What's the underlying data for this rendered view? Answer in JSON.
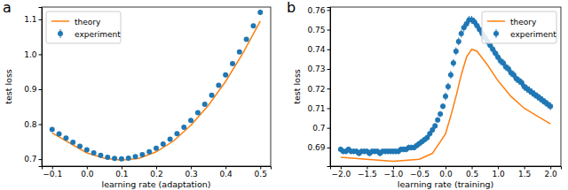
{
  "chart_data": [
    {
      "type": "line",
      "title": "a",
      "x_label": "learning rate (adaptation)",
      "y_label": "test loss",
      "xlim": [
        -0.13,
        0.53
      ],
      "ylim": [
        0.68,
        1.135
      ],
      "xticks": [
        {
          "value": -0.1,
          "label": "−0.1"
        },
        {
          "value": 0,
          "label": "0.0"
        },
        0.1,
        0.2,
        0.3,
        0.4,
        0.5
      ],
      "yticks": [
        0.7,
        0.8,
        0.9,
        {
          "value": 1,
          "label": "1.0"
        },
        1.1
      ],
      "legend": "upper left",
      "series": [
        {
          "name": "theory",
          "type": "line",
          "color": "#ff7f0e",
          "line_style": "solid",
          "x": [
            -0.1,
            0,
            0.05,
            0.1,
            0.15,
            0.2,
            0.25,
            0.3,
            0.35,
            0.4,
            0.45,
            0.5
          ],
          "values": [
            0.775,
            0.718,
            0.703,
            0.697,
            0.702,
            0.721,
            0.752,
            0.797,
            0.853,
            0.922,
            1.003,
            1.095
          ]
        },
        {
          "name": "experiment",
          "type": "scatter",
          "color": "#1f77b4",
          "marker": "circle",
          "x": [
            -0.1,
            -0.08,
            -0.06,
            -0.04,
            -0.02,
            0,
            0.02,
            0.04,
            0.06,
            0.08,
            0.1,
            0.12,
            0.14,
            0.16,
            0.18,
            0.2,
            0.22,
            0.24,
            0.26,
            0.28,
            0.3,
            0.32,
            0.34,
            0.36,
            0.38,
            0.4,
            0.42,
            0.44,
            0.46,
            0.48,
            0.5
          ],
          "values": [
            0.785,
            0.772,
            0.76,
            0.748,
            0.737,
            0.727,
            0.718,
            0.711,
            0.705,
            0.702,
            0.701,
            0.703,
            0.707,
            0.713,
            0.721,
            0.731,
            0.743,
            0.757,
            0.773,
            0.791,
            0.811,
            0.833,
            0.857,
            0.883,
            0.911,
            0.941,
            0.973,
            1.007,
            1.043,
            1.081,
            1.12
          ],
          "errors": [
            0.006,
            0.006,
            0.006,
            0.006,
            0.006,
            0.006,
            0.006,
            0.006,
            0.006,
            0.006,
            0.006,
            0.006,
            0.006,
            0.006,
            0.006,
            0.006,
            0.006,
            0.006,
            0.006,
            0.006,
            0.006,
            0.006,
            0.006,
            0.006,
            0.006,
            0.006,
            0.006,
            0.006,
            0.006,
            0.006,
            0.008
          ]
        }
      ]
    },
    {
      "type": "line",
      "title": "b",
      "x_label": "learning rate (training)",
      "y_label": "test loss",
      "xlim": [
        -2.2,
        2.2
      ],
      "ylim": [
        0.6805,
        0.7615
      ],
      "xticks": [
        {
          "value": -2,
          "label": "−2.0"
        },
        {
          "value": -1.5,
          "label": "−1.5"
        },
        {
          "value": -1,
          "label": "−1.0"
        },
        {
          "value": -0.5,
          "label": "−0.5"
        },
        {
          "value": 0,
          "label": "0.0"
        },
        0.5,
        {
          "value": 1,
          "label": "1.0"
        },
        1.5,
        {
          "value": 2,
          "label": "2.0"
        }
      ],
      "yticks": [
        0.69,
        0.7,
        0.71,
        0.72,
        0.73,
        0.74,
        0.75,
        0.76
      ],
      "legend": "upper right",
      "series": [
        {
          "name": "theory",
          "type": "line",
          "color": "#ff7f0e",
          "line_style": "solid",
          "x": [
            -2,
            -1.5,
            -1,
            -0.5,
            -0.25,
            0,
            0.1,
            0.2,
            0.3,
            0.4,
            0.5,
            0.6,
            0.8,
            1,
            1.25,
            1.5,
            1.75,
            2
          ],
          "values": [
            0.685,
            0.684,
            0.683,
            0.684,
            0.687,
            0.697,
            0.706,
            0.716,
            0.727,
            0.736,
            0.74,
            0.739,
            0.732,
            0.724,
            0.716,
            0.71,
            0.706,
            0.702
          ]
        },
        {
          "name": "experiment",
          "type": "scatter",
          "color": "#1f77b4",
          "marker": "circle",
          "x": [
            -2,
            -1.95,
            -1.9,
            -1.85,
            -1.8,
            -1.75,
            -1.7,
            -1.65,
            -1.6,
            -1.55,
            -1.5,
            -1.45,
            -1.4,
            -1.35,
            -1.3,
            -1.25,
            -1.2,
            -1.15,
            -1.1,
            -1.05,
            -1,
            -0.95,
            -0.9,
            -0.85,
            -0.8,
            -0.75,
            -0.7,
            -0.65,
            -0.6,
            -0.55,
            -0.5,
            -0.45,
            -0.4,
            -0.35,
            -0.3,
            -0.25,
            -0.2,
            -0.15,
            -0.1,
            -0.05,
            0,
            0.05,
            0.1,
            0.15,
            0.2,
            0.25,
            0.3,
            0.35,
            0.4,
            0.45,
            0.5,
            0.55,
            0.6,
            0.65,
            0.7,
            0.75,
            0.8,
            0.85,
            0.9,
            0.95,
            1,
            1.05,
            1.1,
            1.15,
            1.2,
            1.25,
            1.3,
            1.35,
            1.4,
            1.45,
            1.5,
            1.55,
            1.6,
            1.65,
            1.7,
            1.75,
            1.8,
            1.85,
            1.9,
            1.95,
            2
          ],
          "values": [
            0.689,
            0.688,
            0.688,
            0.689,
            0.688,
            0.688,
            0.688,
            0.687,
            0.688,
            0.688,
            0.688,
            0.687,
            0.688,
            0.688,
            0.688,
            0.687,
            0.688,
            0.688,
            0.688,
            0.688,
            0.688,
            0.688,
            0.688,
            0.689,
            0.689,
            0.689,
            0.69,
            0.69,
            0.69,
            0.691,
            0.692,
            0.693,
            0.694,
            0.695,
            0.697,
            0.699,
            0.701,
            0.704,
            0.707,
            0.711,
            0.716,
            0.721,
            0.727,
            0.733,
            0.739,
            0.744,
            0.748,
            0.751,
            0.753,
            0.755,
            0.755,
            0.754,
            0.752,
            0.75,
            0.748,
            0.746,
            0.744,
            0.742,
            0.74,
            0.738,
            0.736,
            0.734,
            0.733,
            0.731,
            0.73,
            0.728,
            0.727,
            0.725,
            0.724,
            0.723,
            0.721,
            0.72,
            0.719,
            0.718,
            0.717,
            0.716,
            0.715,
            0.714,
            0.713,
            0.712,
            0.711
          ],
          "errors": [
            0.0015,
            0.0015,
            0.0015,
            0.0015,
            0.0015,
            0.0015,
            0.0015,
            0.0015,
            0.0015,
            0.0015,
            0.0015,
            0.0015,
            0.0015,
            0.0015,
            0.0015,
            0.0015,
            0.0015,
            0.0015,
            0.0015,
            0.0015,
            0.0015,
            0.0015,
            0.0015,
            0.0015,
            0.0015,
            0.0015,
            0.0015,
            0.0015,
            0.0015,
            0.0015,
            0.0015,
            0.0015,
            0.0015,
            0.0015,
            0.0015,
            0.0015,
            0.0015,
            0.0015,
            0.0015,
            0.0015,
            0.002,
            0.002,
            0.002,
            0.002,
            0.002,
            0.002,
            0.002,
            0.002,
            0.002,
            0.002,
            0.002,
            0.002,
            0.002,
            0.002,
            0.002,
            0.002,
            0.002,
            0.002,
            0.002,
            0.002,
            0.002,
            0.002,
            0.002,
            0.002,
            0.002,
            0.002,
            0.002,
            0.002,
            0.002,
            0.002,
            0.002,
            0.002,
            0.002,
            0.002,
            0.002,
            0.002,
            0.002,
            0.002,
            0.002,
            0.002,
            0.002
          ]
        }
      ]
    }
  ]
}
